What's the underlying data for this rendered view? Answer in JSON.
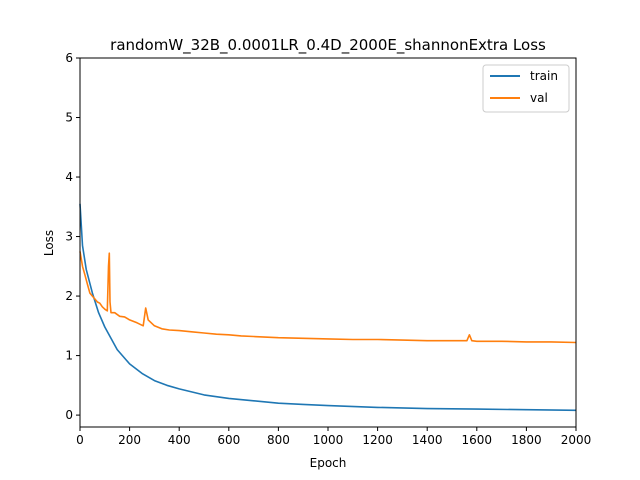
{
  "chart_data": {
    "type": "line",
    "title": "randomW_32B_0.0001LR_0.4D_2000E_shannonExtra Loss",
    "xlabel": "Epoch",
    "ylabel": "Loss",
    "xlim": [
      0,
      2000
    ],
    "ylim": [
      -0.2,
      6
    ],
    "xticks": [
      0,
      200,
      400,
      600,
      800,
      1000,
      1200,
      1400,
      1600,
      1800,
      2000
    ],
    "yticks": [
      0,
      1,
      2,
      3,
      4,
      5,
      6
    ],
    "grid": false,
    "legend_position": "top-right",
    "series": [
      {
        "name": "train",
        "color": "#1f77b4",
        "x": [
          0,
          10,
          25,
          50,
          75,
          100,
          150,
          200,
          250,
          300,
          350,
          400,
          500,
          600,
          700,
          800,
          900,
          1000,
          1200,
          1400,
          1600,
          1800,
          2000
        ],
        "y": [
          3.55,
          2.85,
          2.45,
          2.05,
          1.72,
          1.48,
          1.1,
          0.86,
          0.7,
          0.58,
          0.5,
          0.44,
          0.34,
          0.28,
          0.24,
          0.2,
          0.18,
          0.16,
          0.13,
          0.11,
          0.1,
          0.09,
          0.08
        ]
      },
      {
        "name": "val",
        "color": "#ff7f0e",
        "x": [
          0,
          10,
          20,
          30,
          40,
          50,
          60,
          70,
          80,
          90,
          100,
          110,
          115,
          118,
          121,
          125,
          140,
          160,
          180,
          200,
          230,
          255,
          265,
          275,
          300,
          330,
          360,
          400,
          450,
          500,
          550,
          600,
          650,
          700,
          800,
          900,
          1000,
          1100,
          1200,
          1300,
          1400,
          1500,
          1560,
          1570,
          1580,
          1600,
          1700,
          1800,
          1900,
          2000
        ],
        "y": [
          2.75,
          2.5,
          2.35,
          2.2,
          2.05,
          2.0,
          1.95,
          1.9,
          1.88,
          1.82,
          1.78,
          1.75,
          2.5,
          2.72,
          1.9,
          1.72,
          1.72,
          1.66,
          1.65,
          1.6,
          1.55,
          1.5,
          1.8,
          1.6,
          1.5,
          1.45,
          1.43,
          1.42,
          1.4,
          1.38,
          1.36,
          1.35,
          1.33,
          1.32,
          1.3,
          1.29,
          1.28,
          1.27,
          1.27,
          1.26,
          1.25,
          1.25,
          1.25,
          1.35,
          1.25,
          1.24,
          1.24,
          1.23,
          1.23,
          1.22
        ]
      }
    ]
  }
}
